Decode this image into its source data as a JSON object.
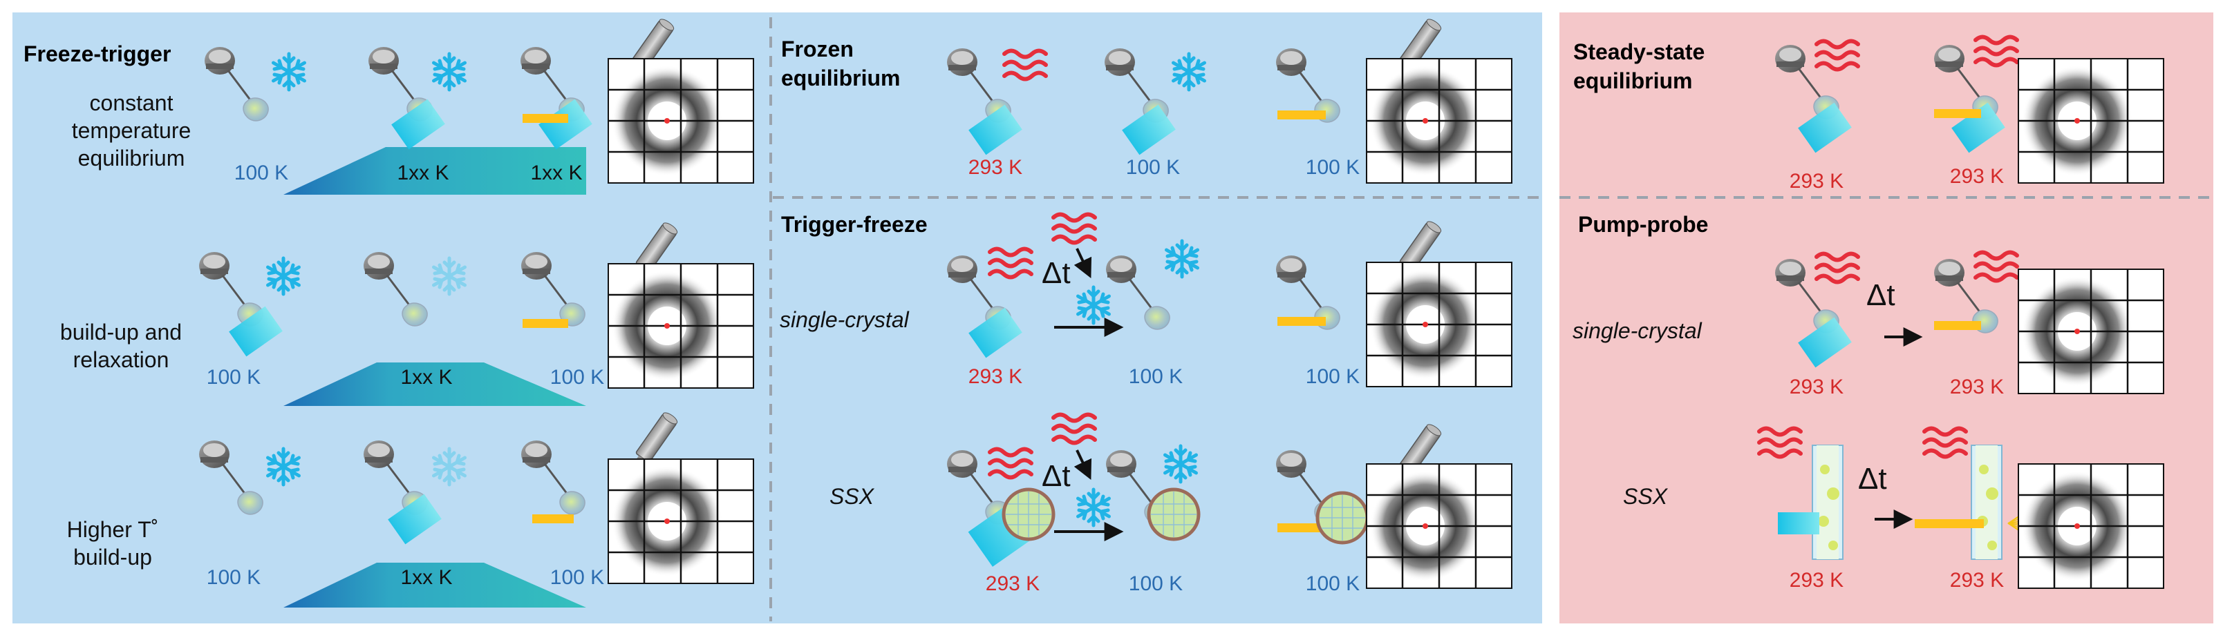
{
  "colors": {
    "blue_panel": "#bcdcf3",
    "red_panel": "#f4c7c9",
    "cold_text": "#2b6cb0",
    "hot_text": "#d42a2a",
    "snowflake": "#21b4e6",
    "snowflake_faded": "#86d2ee",
    "heat_waves": "#e52e3b",
    "trigger_light": "#2fd3e8",
    "xray_beam": "#ffc21a",
    "ramp_start": "#1e6fb7",
    "ramp_end": "#34c0bd"
  },
  "icons": [
    "goniometer-head-icon",
    "snowflake-icon",
    "heat-waves-icon",
    "x-ray-source-icon",
    "detector-icon",
    "crystal-drop-icon",
    "trigger-light-icon",
    "fixed-target-chip-icon",
    "liquid-jet-icon"
  ],
  "freeze_trigger": {
    "title": "Freeze-trigger",
    "row1": {
      "label_lines": [
        "constant",
        "temperature",
        "equilibrium"
      ],
      "temps": [
        "100 K",
        "1xx K",
        "1xx K"
      ],
      "ramp_label": "1xx K"
    },
    "row2": {
      "label_lines": [
        "build-up and",
        "relaxation"
      ],
      "temps": [
        "100 K",
        "100 K"
      ],
      "ramp_label": "1xx K"
    },
    "row3": {
      "label_lines": [
        "Higher T˚",
        "build-up"
      ],
      "temps": [
        "100 K",
        "100 K"
      ],
      "ramp_label": "1xx K"
    }
  },
  "frozen_equilibrium": {
    "title_lines": [
      "Frozen",
      "equilibrium"
    ],
    "temps": [
      "293 K",
      "100 K",
      "100 K"
    ]
  },
  "trigger_freeze": {
    "title": "Trigger-freeze",
    "single_crystal": {
      "label": "single-crystal",
      "delay": "Δt",
      "temps": [
        "293 K",
        "100 K",
        "100 K"
      ]
    },
    "ssx": {
      "label": "SSX",
      "delay": "Δt",
      "temps": [
        "293 K",
        "100 K",
        "100 K"
      ]
    }
  },
  "steady_state": {
    "title_lines": [
      "Steady-state",
      "equilibrium"
    ],
    "temps": [
      "293 K",
      "293 K"
    ]
  },
  "pump_probe": {
    "title": "Pump-probe",
    "single_crystal": {
      "label": "single-crystal",
      "delay": "Δt",
      "temps": [
        "293 K",
        "293 K"
      ]
    },
    "ssx": {
      "label": "SSX",
      "delay": "Δt",
      "temps": [
        "293 K",
        "293 K"
      ]
    }
  }
}
